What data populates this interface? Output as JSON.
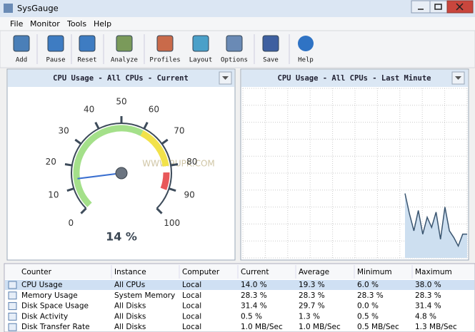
{
  "window": {
    "title": "SysGauge"
  },
  "menu": [
    "File",
    "Monitor",
    "Tools",
    "Help"
  ],
  "toolbar": [
    "Add",
    "Pause",
    "Reset",
    "Analyze",
    "Profiles",
    "Layout",
    "Options",
    "Save",
    "Help"
  ],
  "current_panel": {
    "title": "CPU Usage - All CPUs - Current",
    "gauge": {
      "ticks": [
        0,
        10,
        20,
        30,
        40,
        50,
        60,
        70,
        80,
        90,
        100
      ],
      "value": 14,
      "value_label": "14 %"
    },
    "watermark": "WWW.9UPK.COM"
  },
  "last_minute_panel": {
    "title": "CPU Usage - All CPUs - Last Minute",
    "ylim": [
      0,
      100
    ],
    "values": [
      38,
      26,
      16,
      28,
      14,
      24,
      18,
      27,
      11,
      30,
      16,
      12,
      7,
      14,
      14
    ]
  },
  "table": {
    "columns": [
      "Counter",
      "Instance",
      "Computer",
      "Current",
      "Average",
      "Minimum",
      "Maximum"
    ],
    "rows": [
      [
        "CPU Usage",
        "All CPUs",
        "Local",
        "14.0 %",
        "19.3 %",
        "6.0 %",
        "38.0 %"
      ],
      [
        "Memory Usage",
        "System Memory",
        "Local",
        "28.3 %",
        "28.3 %",
        "28.3 %",
        "28.3 %"
      ],
      [
        "Disk Space Usage",
        "All Disks",
        "Local",
        "31.4 %",
        "29.7 %",
        "0.0 %",
        "31.4 %"
      ],
      [
        "Disk Activity",
        "All Disks",
        "Local",
        "0.5 %",
        "1.3 %",
        "0.5 %",
        "4.8 %"
      ],
      [
        "Disk Transfer Rate",
        "All Disks",
        "Local",
        "1.0 MB/Sec",
        "1.0 MB/Sec",
        "0.5 MB/Sec",
        "1.3 MB/Sec"
      ]
    ]
  }
}
